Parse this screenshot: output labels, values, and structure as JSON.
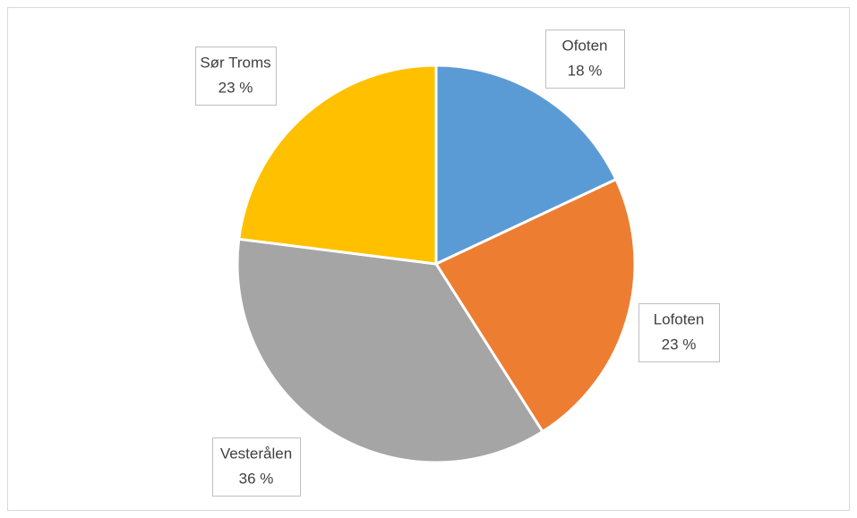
{
  "chart_data": {
    "type": "pie",
    "categories": [
      "Ofoten",
      "Lofoten",
      "Vesterålen",
      "Sør Troms"
    ],
    "values": [
      18,
      23,
      36,
      23
    ],
    "value_labels": [
      "18 %",
      "23 %",
      "36 %",
      "23 %"
    ],
    "colors": [
      "#5b9bd5",
      "#ed7d31",
      "#a5a5a5",
      "#ffc000"
    ]
  }
}
